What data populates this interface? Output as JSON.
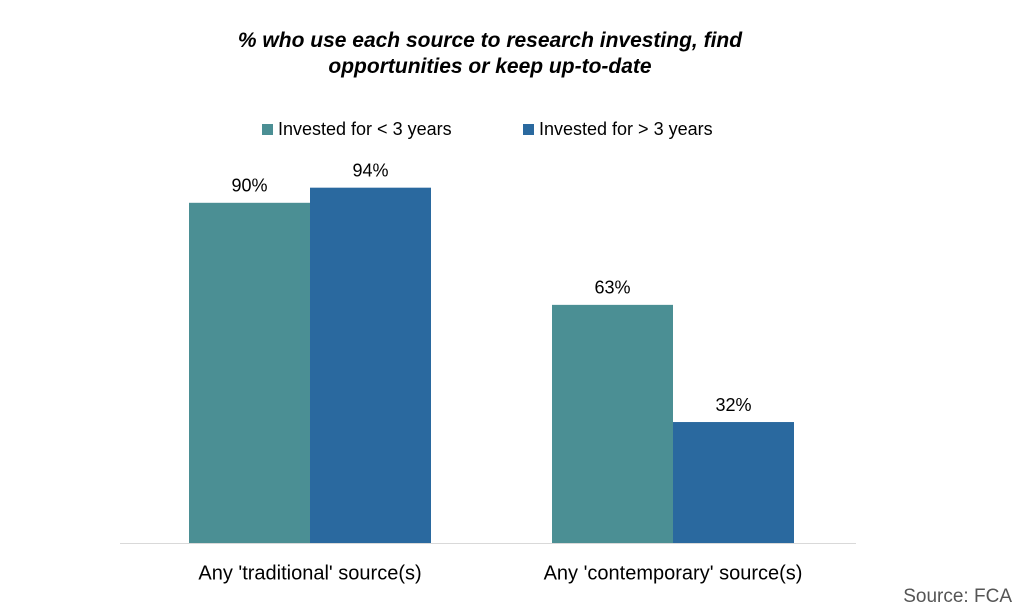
{
  "chart_data": {
    "type": "bar",
    "title": "% who use each source to research investing, find opportunities or keep up-to-date",
    "categories": [
      "Any 'traditional' source(s)",
      "Any 'contemporary' source(s)"
    ],
    "series": [
      {
        "name": "Invested for < 3 years",
        "color": "#4b8f94",
        "values": [
          90,
          63
        ],
        "value_labels": [
          "90%",
          "63%"
        ]
      },
      {
        "name": "Invested for > 3 years",
        "color": "#2a699f",
        "values": [
          94,
          32
        ],
        "value_labels": [
          "94%",
          "32%"
        ]
      }
    ],
    "source": "Source: FCA"
  }
}
